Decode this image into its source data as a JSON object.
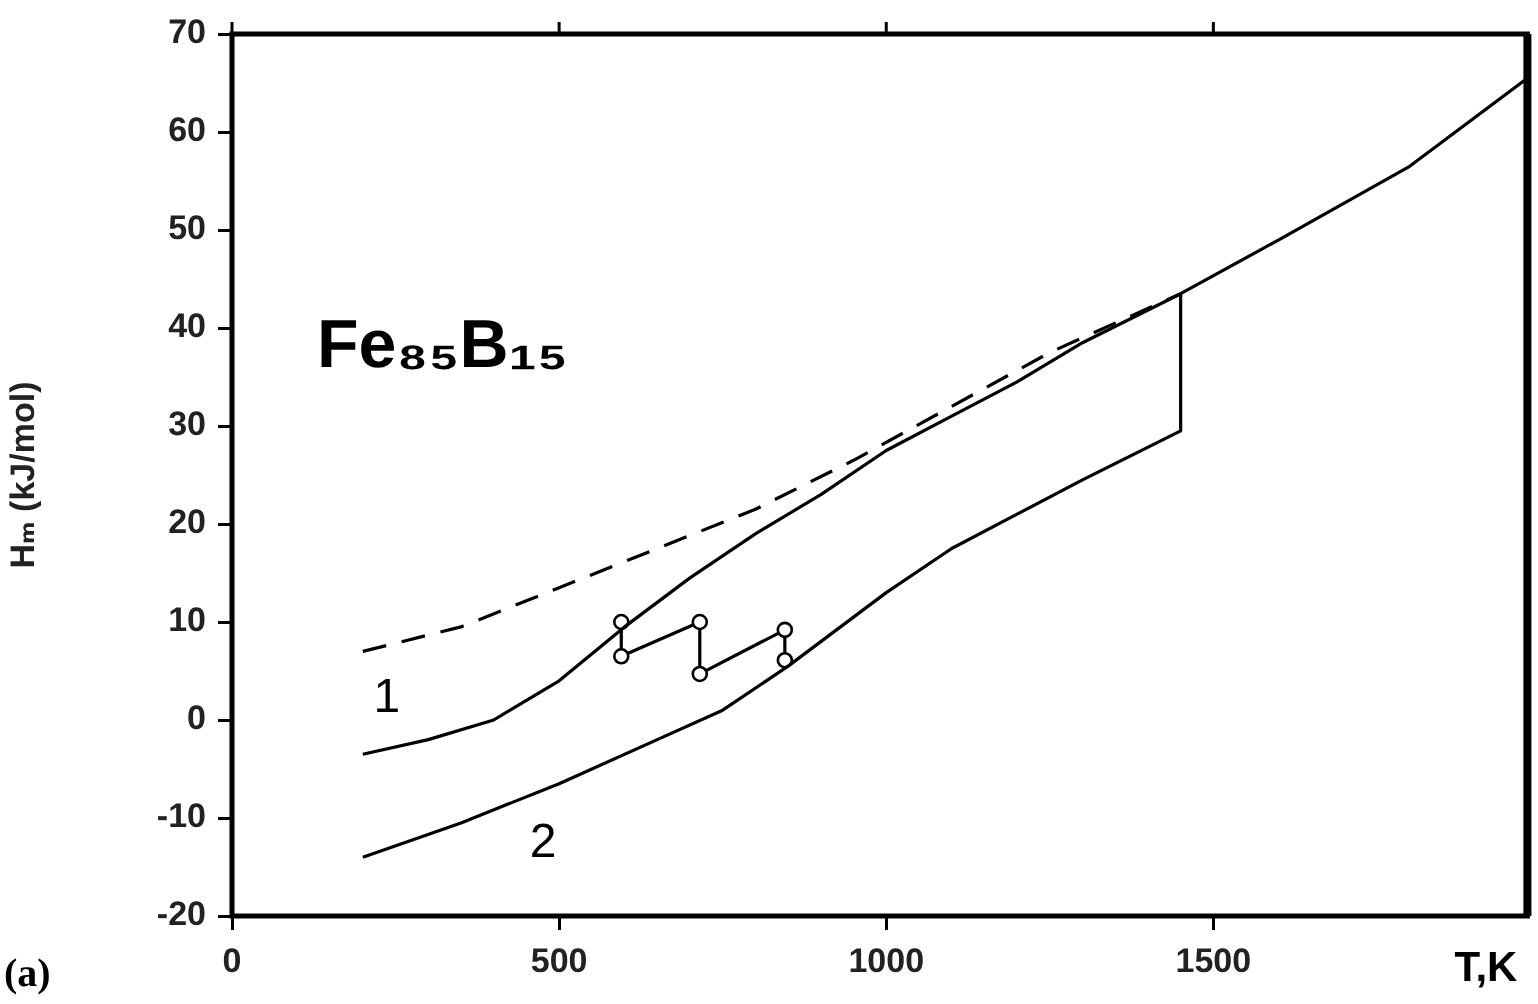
{
  "chart_data": {
    "type": "line",
    "title": "Fe₈₅B₁₅",
    "xlabel": "T,K",
    "ylabel": "Hₘ (kJ/mol)",
    "xlim": [
      0,
      1980
    ],
    "xticks": [
      0,
      500,
      1000,
      1500
    ],
    "ylim": [
      -20,
      70
    ],
    "yticks": [
      -20,
      -10,
      0,
      10,
      20,
      30,
      40,
      50,
      60,
      70
    ],
    "grid": false,
    "legend": false,
    "marker": "none",
    "series": [
      {
        "color": "#000000",
        "line_style": "dashed",
        "x": [
          200,
          350,
          500,
          650,
          800,
          950,
          1100,
          1250,
          1450
        ],
        "values": [
          7,
          9.5,
          13.5,
          17.5,
          21.5,
          26.5,
          32,
          37.5,
          43.5
        ]
      },
      {
        "name": "1",
        "color": "#000000",
        "line_style": "solid",
        "x": [
          200,
          300,
          400,
          500,
          600,
          700,
          800,
          900,
          1000,
          1100,
          1200,
          1300,
          1450,
          1600,
          1800,
          1980
        ],
        "values": [
          -3.5,
          -2,
          0,
          4,
          9.5,
          14.5,
          19,
          23,
          27.5,
          31,
          34.5,
          38.5,
          43.5,
          49,
          56.5,
          65.5
        ]
      },
      {
        "name": "2",
        "color": "#000000",
        "line_style": "solid",
        "x": [
          200,
          350,
          500,
          650,
          750,
          850,
          1000,
          1100,
          1200,
          1300,
          1450,
          1450
        ],
        "values": [
          -14,
          -10.5,
          -6.5,
          -2,
          1,
          5.5,
          13,
          17.5,
          21,
          24.5,
          29.5,
          43.5
        ]
      },
      {
        "color": "#000000",
        "line_style": "solid",
        "marker": "circle",
        "x": [
          595,
          595,
          715,
          715,
          845,
          845
        ],
        "values": [
          10,
          6.5,
          10,
          4.7,
          9.2,
          6.1
        ]
      }
    ],
    "annotations": [
      "(a)"
    ]
  }
}
